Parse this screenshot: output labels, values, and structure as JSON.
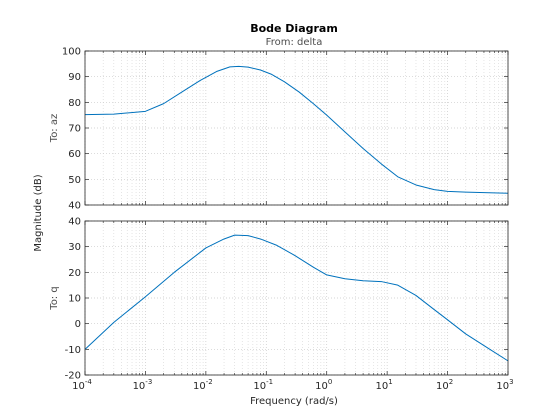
{
  "chart_data": {
    "type": "line",
    "title": "Bode Diagram",
    "subtitle": "From: delta",
    "xlabel": "Frequency  (rad/s)",
    "ylabel": "Magnitude (dB)",
    "xscale": "log",
    "xlim": [
      0.0001,
      1000
    ],
    "grid": true,
    "line_color": "#0072bd",
    "x_tick_labels": [
      {
        "base": "10",
        "exp": "-4"
      },
      {
        "base": "10",
        "exp": "-3"
      },
      {
        "base": "10",
        "exp": "-2"
      },
      {
        "base": "10",
        "exp": "-1"
      },
      {
        "base": "10",
        "exp": "0"
      },
      {
        "base": "10",
        "exp": "1"
      },
      {
        "base": "10",
        "exp": "2"
      },
      {
        "base": "10",
        "exp": "3"
      }
    ],
    "panels": [
      {
        "row_label": "To: az",
        "ylim": [
          40,
          100
        ],
        "yticks": [
          40,
          50,
          60,
          70,
          80,
          90,
          100
        ],
        "x": [
          0.0001,
          0.0003,
          0.001,
          0.002,
          0.004,
          0.008,
          0.015,
          0.025,
          0.035,
          0.05,
          0.08,
          0.12,
          0.2,
          0.35,
          0.6,
          1,
          2,
          4,
          8,
          15,
          30,
          60,
          100,
          200,
          1000
        ],
        "y": [
          75.2,
          75.4,
          76.5,
          79.5,
          84.0,
          88.5,
          92.0,
          93.8,
          94.0,
          93.7,
          92.6,
          91.0,
          88.0,
          84.0,
          79.5,
          75.0,
          68.5,
          62.0,
          56.0,
          51.0,
          47.8,
          46.0,
          45.3,
          45.0,
          44.6
        ]
      },
      {
        "row_label": "To: q",
        "ylim": [
          -20,
          40
        ],
        "yticks": [
          -20,
          -10,
          0,
          10,
          20,
          30,
          40
        ],
        "x": [
          0.0001,
          0.0003,
          0.001,
          0.003,
          0.01,
          0.02,
          0.03,
          0.05,
          0.08,
          0.15,
          0.3,
          0.6,
          1,
          2,
          4,
          8,
          15,
          30,
          60,
          100,
          200,
          500,
          1000
        ],
        "y": [
          -10.0,
          0.5,
          10.5,
          20.0,
          29.5,
          33.0,
          34.5,
          34.3,
          33.0,
          30.5,
          26.5,
          22.0,
          19.0,
          17.5,
          16.7,
          16.4,
          15.0,
          11.0,
          5.5,
          1.5,
          -4.0,
          -10.0,
          -14.5
        ]
      }
    ]
  }
}
